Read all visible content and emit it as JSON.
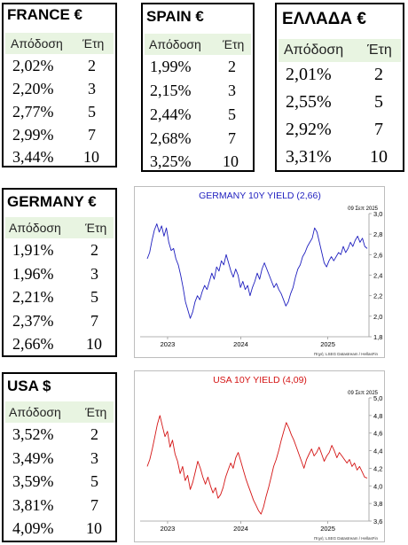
{
  "tables": {
    "france": {
      "title": "FRANCE €",
      "col_yield": "Απόδοση",
      "col_years": "Έτη",
      "rows": [
        {
          "yield": "2,02%",
          "years": "2"
        },
        {
          "yield": "2,20%",
          "years": "3"
        },
        {
          "yield": "2,77%",
          "years": "5"
        },
        {
          "yield": "2,99%",
          "years": "7"
        },
        {
          "yield": "3,44%",
          "years": "10"
        }
      ]
    },
    "spain": {
      "title": "SPAIN €",
      "col_yield": "Απόδοση",
      "col_years": "Έτη",
      "rows": [
        {
          "yield": "1,99%",
          "years": "2"
        },
        {
          "yield": "2,15%",
          "years": "3"
        },
        {
          "yield": "2,44%",
          "years": "5"
        },
        {
          "yield": "2,68%",
          "years": "7"
        },
        {
          "yield": "3,25%",
          "years": "10"
        }
      ]
    },
    "greece": {
      "title": "ΕΛΛΑΔΑ €",
      "col_yield": "Απόδοση",
      "col_years": "Έτη",
      "rows": [
        {
          "yield": "2,01%",
          "years": "2"
        },
        {
          "yield": "2,55%",
          "years": "5"
        },
        {
          "yield": "2,92%",
          "years": "7"
        },
        {
          "yield": "3,31%",
          "years": "10"
        }
      ]
    },
    "germany": {
      "title": "GERMANY €",
      "col_yield": "Απόδοση",
      "col_years": "Έτη",
      "rows": [
        {
          "yield": "1,91%",
          "years": "2"
        },
        {
          "yield": "1,96%",
          "years": "3"
        },
        {
          "yield": "2,21%",
          "years": "5"
        },
        {
          "yield": "2,37%",
          "years": "7"
        },
        {
          "yield": "2,66%",
          "years": "10"
        }
      ]
    },
    "usa": {
      "title": "USA $",
      "col_yield": "Απόδοση",
      "col_years": "Έτη",
      "rows": [
        {
          "yield": "3,52%",
          "years": "2"
        },
        {
          "yield": "3,49%",
          "years": "3"
        },
        {
          "yield": "3,59%",
          "years": "5"
        },
        {
          "yield": "3,81%",
          "years": "7"
        },
        {
          "yield": "4,09%",
          "years": "10"
        }
      ]
    }
  },
  "chart_data": [
    {
      "type": "line",
      "title": "GERMANY 10Y YIELD  (2,66)",
      "date_label": "09 Σεπ 2025",
      "source": "Πηγή: LSEG Datastream / HellasFin",
      "x_ticks": [
        "2023",
        "2024",
        "2025"
      ],
      "y_ticks": [
        "1,8",
        "2,0",
        "2,2",
        "2,4",
        "2,6",
        "2,8",
        "3,0"
      ],
      "ylim": [
        1.8,
        3.0
      ],
      "line_color": "#1f1fbf",
      "title_color": "#1f1fbf",
      "series": [
        {
          "values": [
            2.56,
            2.62,
            2.74,
            2.84,
            2.9,
            2.82,
            2.88,
            2.78,
            2.86,
            2.72,
            2.64,
            2.66,
            2.56,
            2.5,
            2.4,
            2.28,
            2.14,
            2.06,
            1.98,
            2.04,
            2.14,
            2.2,
            2.16,
            2.24,
            2.3,
            2.26,
            2.34,
            2.42,
            2.36,
            2.48,
            2.44,
            2.54,
            2.5,
            2.6,
            2.52,
            2.44,
            2.38,
            2.46,
            2.4,
            2.28,
            2.34,
            2.26,
            2.3,
            2.2,
            2.28,
            2.34,
            2.42,
            2.36,
            2.46,
            2.52,
            2.46,
            2.4,
            2.34,
            2.28,
            2.32,
            2.26,
            2.22,
            2.16,
            2.1,
            2.14,
            2.22,
            2.28,
            2.38,
            2.46,
            2.5,
            2.58,
            2.62,
            2.68,
            2.72,
            2.76,
            2.86,
            2.82,
            2.72,
            2.62,
            2.52,
            2.48,
            2.54,
            2.58,
            2.54,
            2.58,
            2.62,
            2.6,
            2.68,
            2.62,
            2.66,
            2.72,
            2.68,
            2.74,
            2.78,
            2.72,
            2.76,
            2.68,
            2.66
          ]
        }
      ]
    },
    {
      "type": "line",
      "title": "USA 10Y YIELD  (4,09)",
      "date_label": "09 Σεπ 2025",
      "source": "Πηγή: LSEG Datastream / HellasFin",
      "x_ticks": [
        "2023",
        "2024",
        "2025"
      ],
      "y_ticks": [
        "3,6",
        "3,8",
        "4,0",
        "4,2",
        "4,4",
        "4,6",
        "4,8",
        "5,0"
      ],
      "ylim": [
        3.6,
        5.0
      ],
      "line_color": "#d41414",
      "title_color": "#d41414",
      "series": [
        {
          "values": [
            4.22,
            4.3,
            4.42,
            4.56,
            4.7,
            4.8,
            4.68,
            4.56,
            4.62,
            4.44,
            4.52,
            4.36,
            4.28,
            4.14,
            4.22,
            4.06,
            4.12,
            3.96,
            4.04,
            4.16,
            4.28,
            4.2,
            4.1,
            4.02,
            4.1,
            4.0,
            3.92,
            3.98,
            3.86,
            3.9,
            3.98,
            4.1,
            4.18,
            4.26,
            4.2,
            4.32,
            4.38,
            4.28,
            4.18,
            4.08,
            4.0,
            3.92,
            3.84,
            3.78,
            3.72,
            3.68,
            3.76,
            3.88,
            3.98,
            4.1,
            4.22,
            4.3,
            4.4,
            4.52,
            4.62,
            4.72,
            4.66,
            4.58,
            4.52,
            4.44,
            4.36,
            4.28,
            4.2,
            4.3,
            4.36,
            4.42,
            4.34,
            4.38,
            4.44,
            4.36,
            4.28,
            4.34,
            4.38,
            4.46,
            4.4,
            4.32,
            4.38,
            4.34,
            4.3,
            4.26,
            4.3,
            4.22,
            4.26,
            4.18,
            4.22,
            4.16,
            4.1,
            4.09
          ]
        }
      ]
    }
  ]
}
